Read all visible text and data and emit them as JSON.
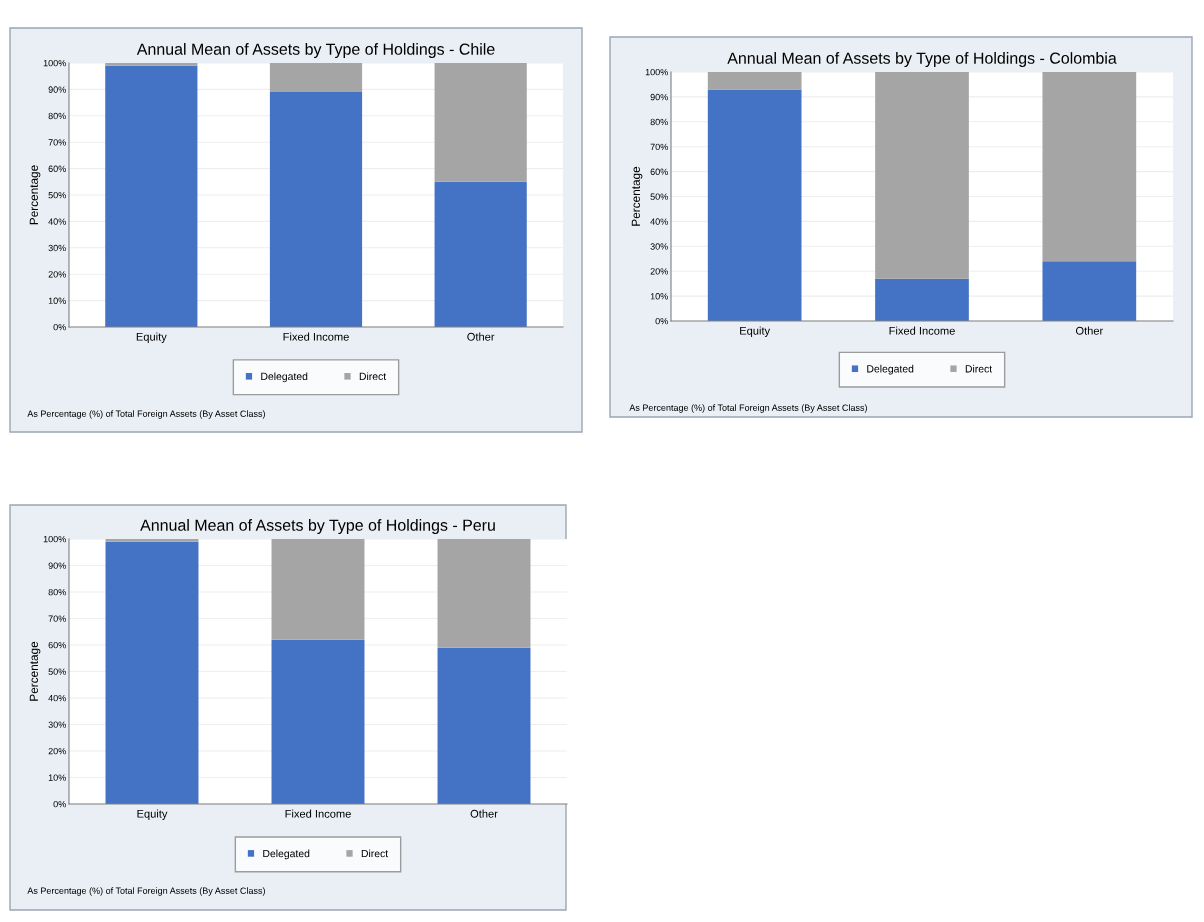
{
  "chart_data": [
    {
      "type": "bar",
      "title": "Annual Mean of Assets by Type of Holdings - Chile",
      "ylabel": "Percentage",
      "categories": [
        "Equity",
        "Fixed Income",
        "Other"
      ],
      "stacked": true,
      "series": [
        {
          "name": "Delegated",
          "color": "#4472c4",
          "values": [
            99,
            89,
            55
          ]
        },
        {
          "name": "Direct",
          "color": "#a5a5a5",
          "values": [
            1,
            11,
            45
          ]
        }
      ],
      "ylim": [
        0,
        100
      ],
      "yticks": [
        {
          "value": 0,
          "label": "0%"
        },
        {
          "value": 10,
          "label": "10%"
        },
        {
          "value": 20,
          "label": "20%"
        },
        {
          "value": 30,
          "label": "30%"
        },
        {
          "value": 40,
          "label": "40%"
        },
        {
          "value": 50,
          "label": "50%"
        },
        {
          "value": 60,
          "label": "60%"
        },
        {
          "value": 70,
          "label": "70%"
        },
        {
          "value": 80,
          "label": "80%"
        },
        {
          "value": 90,
          "label": "90%"
        },
        {
          "value": 100,
          "label": "100%"
        }
      ],
      "grid": "y",
      "legend": "bottom",
      "annotations": [
        "As Percentage (%) of Total Foreign Assets (By Asset Class)"
      ]
    },
    {
      "type": "bar",
      "title": "Annual Mean of Assets by Type of Holdings - Colombia",
      "ylabel": "Percentage",
      "categories": [
        "Equity",
        "Fixed Income",
        "Other"
      ],
      "stacked": true,
      "series": [
        {
          "name": "Delegated",
          "color": "#4472c4",
          "values": [
            93,
            17,
            24
          ]
        },
        {
          "name": "Direct",
          "color": "#a5a5a5",
          "values": [
            7,
            83,
            76
          ]
        }
      ],
      "ylim": [
        0,
        100
      ],
      "yticks": [
        {
          "value": 0,
          "label": "0%"
        },
        {
          "value": 10,
          "label": "10%"
        },
        {
          "value": 20,
          "label": "20%"
        },
        {
          "value": 30,
          "label": "30%"
        },
        {
          "value": 40,
          "label": "40%"
        },
        {
          "value": 50,
          "label": "50%"
        },
        {
          "value": 60,
          "label": "60%"
        },
        {
          "value": 70,
          "label": "70%"
        },
        {
          "value": 80,
          "label": "80%"
        },
        {
          "value": 90,
          "label": "90%"
        },
        {
          "value": 100,
          "label": "100%"
        }
      ],
      "grid": "y",
      "legend": "bottom",
      "annotations": [
        "As Percentage (%) of Total Foreign Assets (By Asset Class)"
      ]
    },
    {
      "type": "bar",
      "title": "Annual Mean of Assets by Type of Holdings - Peru",
      "ylabel": "Percentage",
      "categories": [
        "Equity",
        "Fixed Income",
        "Other"
      ],
      "stacked": true,
      "series": [
        {
          "name": "Delegated",
          "color": "#4472c4",
          "values": [
            99,
            62,
            59
          ]
        },
        {
          "name": "Direct",
          "color": "#a5a5a5",
          "values": [
            1,
            38,
            41
          ]
        }
      ],
      "ylim": [
        0,
        100
      ],
      "yticks": [
        {
          "value": 0,
          "label": "0%"
        },
        {
          "value": 10,
          "label": "10%"
        },
        {
          "value": 20,
          "label": "20%"
        },
        {
          "value": 30,
          "label": "30%"
        },
        {
          "value": 40,
          "label": "40%"
        },
        {
          "value": 50,
          "label": "50%"
        },
        {
          "value": 60,
          "label": "60%"
        },
        {
          "value": 70,
          "label": "70%"
        },
        {
          "value": 80,
          "label": "80%"
        },
        {
          "value": 90,
          "label": "90%"
        },
        {
          "value": 100,
          "label": "100%"
        }
      ],
      "grid": "y",
      "legend": "bottom",
      "annotations": [
        "As Percentage (%) of Total Foreign Assets (By Asset Class)"
      ]
    }
  ]
}
